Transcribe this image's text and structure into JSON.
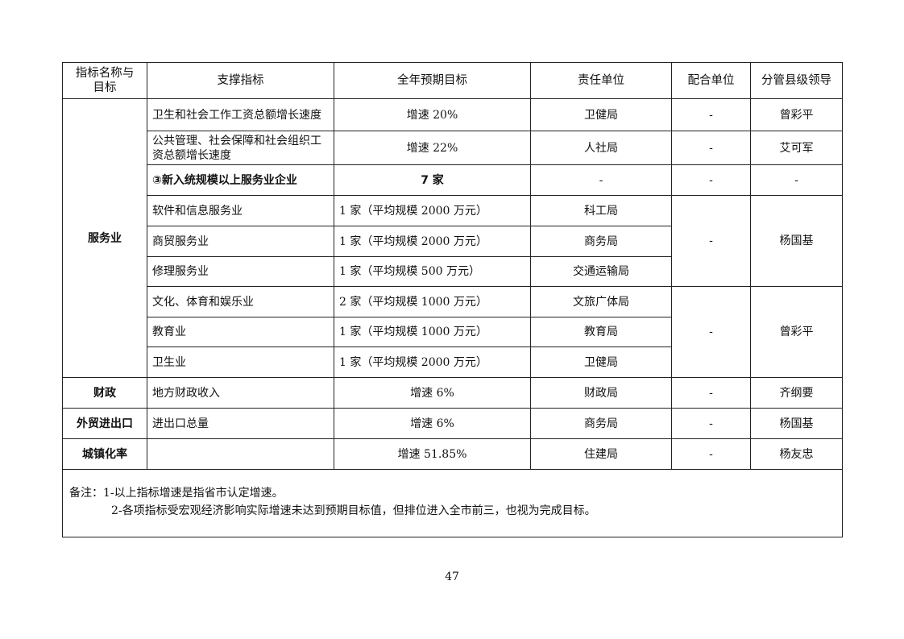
{
  "headers": [
    "指标名称与目标",
    "支撑指标",
    "全年预期目标",
    "责任单位",
    "配合单位",
    "分管县级领导"
  ],
  "section_service": "服务业",
  "rows": [
    {
      "indicator": "卫生和社会工作工资总额增长速度",
      "target": "增速 20%",
      "unit": "卫健局",
      "coop": "-",
      "leader": "曾彩平"
    },
    {
      "indicator": "公共管理、社会保障和社会组织工资总额增长速度",
      "target": "增速 22%",
      "unit": "人社局",
      "coop": "-",
      "leader": "艾可军"
    },
    {
      "indicator": "③新入统规模以上服务业企业",
      "target": "7 家",
      "unit": "-",
      "coop": "-",
      "leader": "-"
    },
    {
      "indicator": "软件和信息服务业",
      "target": "1 家（平均规模 2000 万元）",
      "unit": "科工局"
    },
    {
      "indicator": "商贸服务业",
      "target": "1 家（平均规模 2000 万元）",
      "unit": "商务局"
    },
    {
      "indicator": "修理服务业",
      "target": "1 家（平均规模 500 万元）",
      "unit": "交通运输局"
    },
    {
      "indicator": "文化、体育和娱乐业",
      "target": "2 家（平均规模 1000 万元）",
      "unit": "文旅广体局"
    },
    {
      "indicator": "教育业",
      "target": "1 家（平均规模 1000 万元）",
      "unit": "教育局"
    },
    {
      "indicator": "卫生业",
      "target": "1 家（平均规模 2000 万元）",
      "unit": "卫健局"
    }
  ],
  "group1": {
    "coop": "-",
    "leader": "杨国基"
  },
  "group2": {
    "coop": "-",
    "leader": "曾彩平"
  },
  "others": [
    {
      "name": "财政",
      "indicator": "地方财政收入",
      "target": "增速 6%",
      "unit": "财政局",
      "coop": "-",
      "leader": "齐纲要"
    },
    {
      "name": "外贸进出口",
      "indicator": "进出口总量",
      "target": "增速 6%",
      "unit": "商务局",
      "coop": "-",
      "leader": "杨国基"
    },
    {
      "name": "城镇化率",
      "indicator": "",
      "target": "增速 51.85%",
      "unit": "住建局",
      "coop": "-",
      "leader": "杨友忠"
    }
  ],
  "notes": {
    "label": "备注：",
    "line1": "1-以上指标增速是指省市认定增速。",
    "line2": "2-各项指标受宏观经济影响实际增速未达到预期目标值，但排位进入全市前三，也视为完成目标。"
  },
  "page_number": "47"
}
